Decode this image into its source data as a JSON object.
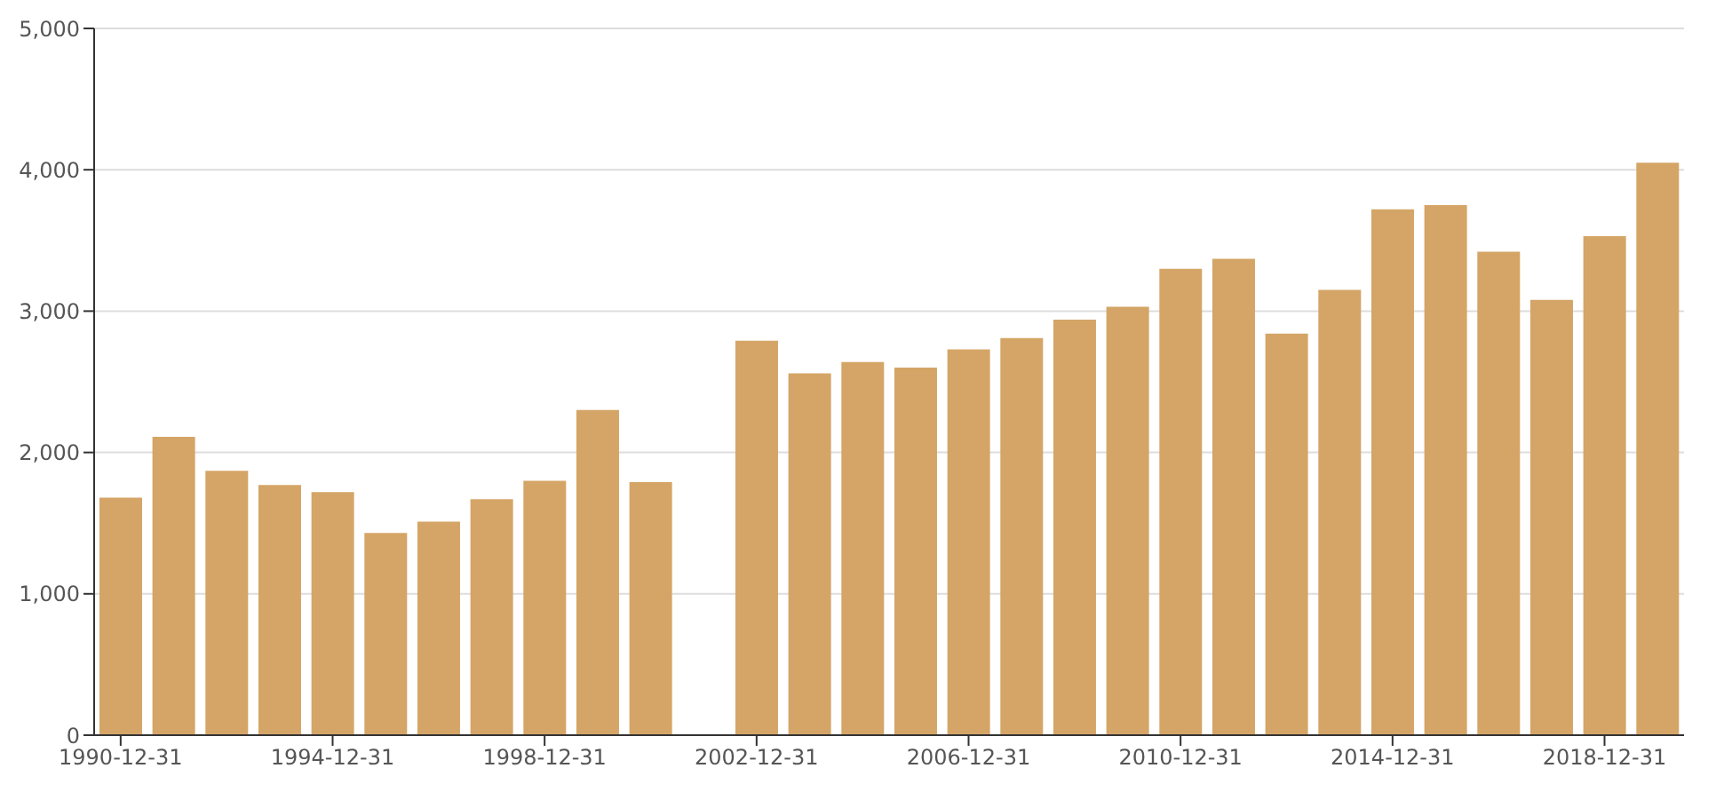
{
  "chart_data": {
    "type": "bar",
    "categories": [
      "1990-12-31",
      null,
      null,
      null,
      "1994-12-31",
      null,
      null,
      null,
      "1998-12-31",
      null,
      null,
      null,
      "2002-12-31",
      null,
      null,
      null,
      "2006-12-31",
      null,
      null,
      null,
      "2010-12-31",
      null,
      null,
      null,
      "2014-12-31",
      null,
      null,
      null,
      "2018-12-31",
      null
    ],
    "values": [
      1680,
      2110,
      1870,
      1770,
      1720,
      1430,
      1510,
      1670,
      1800,
      2300,
      1790,
      null,
      2790,
      2560,
      2640,
      2600,
      2730,
      2810,
      2940,
      3030,
      3300,
      3370,
      2840,
      3150,
      3720,
      3750,
      3420,
      3080,
      3530,
      4050
    ],
    "color": "#d4a566",
    "ylim": [
      0,
      5000
    ],
    "yticks": [
      0,
      {
        "value": 1000,
        "label": "1,000"
      },
      {
        "value": 2000,
        "label": "2,000"
      },
      {
        "value": 3000,
        "label": "3,000"
      },
      {
        "value": 4000,
        "label": "4,000"
      },
      {
        "value": 5000,
        "label": "5,000"
      }
    ],
    "grid": "y"
  }
}
